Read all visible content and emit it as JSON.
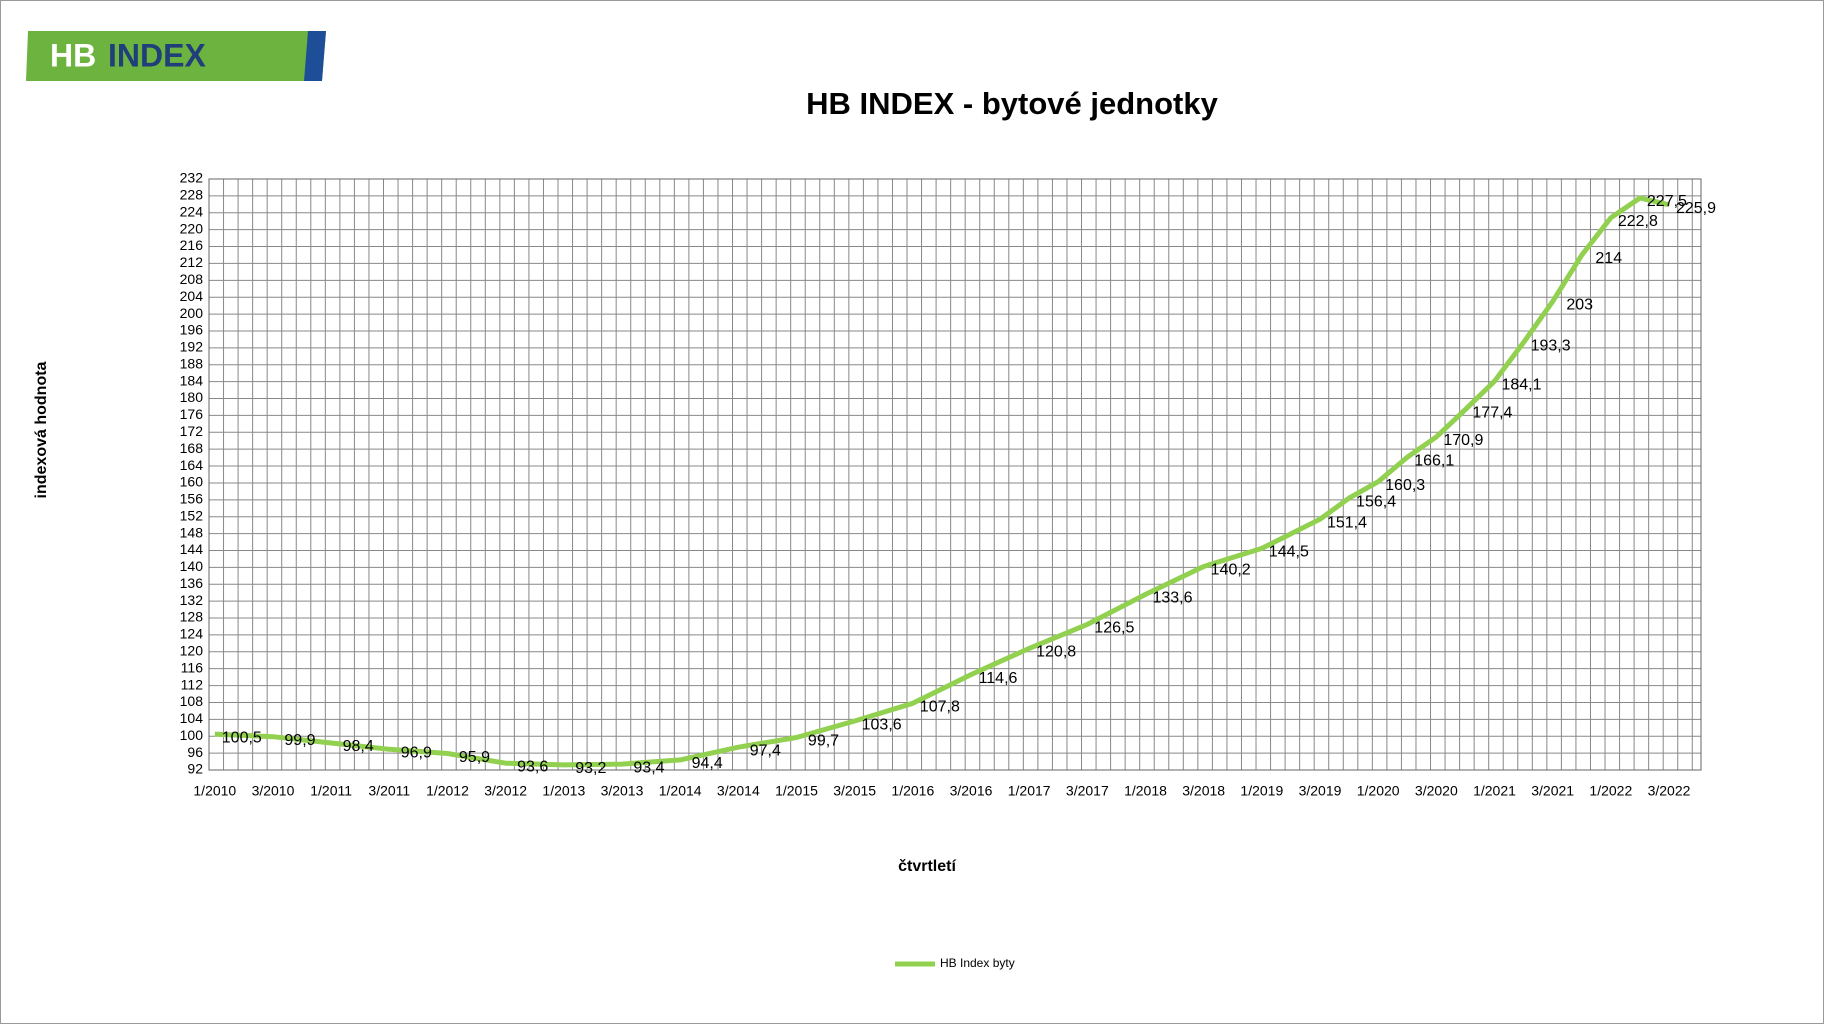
{
  "logo": {
    "part1": "HB",
    "part2": "INDEX"
  },
  "chart_data": {
    "type": "line",
    "title": "HB INDEX - bytové jednotky",
    "y_label": "indexová hodnota",
    "x_label": "čtvrtletí",
    "categories": [
      "1/2010",
      null,
      "3/2010",
      null,
      "1/2011",
      null,
      "3/2011",
      null,
      "1/2012",
      null,
      "3/2012",
      null,
      "1/2013",
      null,
      "3/2013",
      null,
      "1/2014",
      null,
      "3/2014",
      null,
      "1/2015",
      null,
      "3/2015",
      null,
      "1/2016",
      null,
      "3/2016",
      null,
      "1/2017",
      null,
      "3/2017",
      null,
      "1/2018",
      null,
      "3/2018",
      null,
      "1/2019",
      null,
      "3/2019",
      null,
      "1/2020",
      null,
      "3/2020",
      null,
      "1/2021",
      null,
      "3/2021",
      null,
      "1/2022",
      null,
      "3/2022"
    ],
    "series": [
      {
        "name": "HB Index byty",
        "color": "#92d050",
        "values": [
          100.5,
          null,
          99.9,
          null,
          98.4,
          null,
          96.9,
          null,
          95.9,
          null,
          93.6,
          null,
          93.2,
          null,
          93.4,
          null,
          94.4,
          null,
          97.4,
          null,
          99.7,
          null,
          103.6,
          null,
          107.8,
          null,
          114.6,
          null,
          120.8,
          null,
          126.5,
          null,
          133.6,
          null,
          140.2,
          null,
          144.5,
          null,
          151.4,
          156.4,
          160.3,
          166.1,
          170.9,
          177.4,
          184.1,
          193.3,
          203,
          214,
          222.8,
          227.5,
          225.9
        ],
        "value_labels": [
          "100,5",
          null,
          "99,9",
          null,
          "98,4",
          null,
          "96,9",
          null,
          "95,9",
          null,
          "93,6",
          null,
          "93,2",
          null,
          "93,4",
          null,
          "94,4",
          null,
          "97,4",
          null,
          "99,7",
          null,
          "103,6",
          null,
          "107,8",
          null,
          "114,6",
          null,
          "120,8",
          null,
          "126,5",
          null,
          "133,6",
          null,
          "140,2",
          null,
          "144,5",
          null,
          "151,4",
          "156,4",
          "160,3",
          "166,1",
          "170,9",
          "177,4",
          "184,1",
          "193,3",
          "203",
          "214",
          "222,8",
          "227,5",
          "225,9"
        ]
      }
    ],
    "ylim": [
      92,
      232
    ],
    "yticks": [
      92,
      96,
      100,
      104,
      108,
      112,
      116,
      120,
      124,
      128,
      132,
      136,
      140,
      144,
      148,
      152,
      156,
      160,
      164,
      168,
      172,
      176,
      180,
      184,
      188,
      192,
      196,
      200,
      204,
      208,
      212,
      216,
      220,
      224,
      228,
      232
    ],
    "grid": true,
    "legend": "bottom"
  }
}
